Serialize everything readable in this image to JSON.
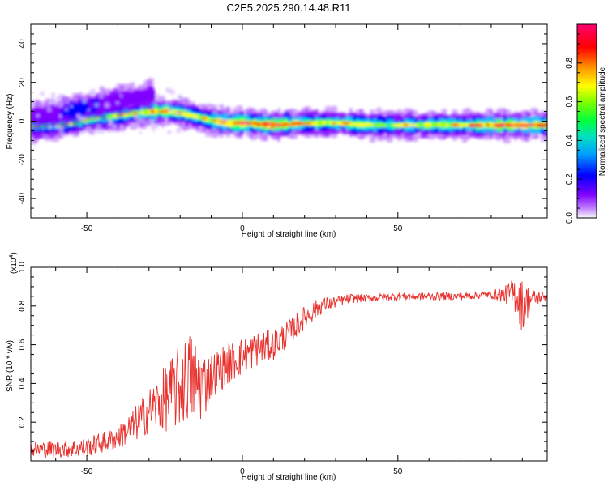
{
  "title": "C2E5.2025.290.14.48.R11",
  "chart_data": [
    {
      "type": "heatmap",
      "xlabel": "Height of straight line (km)",
      "ylabel": "Frequency (Hz)",
      "xlim": [
        -68,
        98
      ],
      "ylim": [
        -50,
        50
      ],
      "xticks": [
        -50,
        0,
        50
      ],
      "yticks": [
        -40,
        -20,
        0,
        20,
        40
      ],
      "colorbar": {
        "label": "Normalized spectral amplitude",
        "range": [
          0,
          1
        ],
        "ticks": [
          "0.0",
          "0.2",
          "0.4",
          "0.6",
          "0.8"
        ],
        "colors": [
          "#f8f8f8",
          "#8000ff",
          "#0000ff",
          "#00c8ff",
          "#00ff80",
          "#80ff00",
          "#ffff00",
          "#ff8000",
          "#ff0000",
          "#ff0080"
        ]
      },
      "ridges": [
        {
          "x": [
            -68,
            -60,
            -55,
            -50,
            -45,
            -40,
            -35,
            -30,
            -25,
            -20,
            -15,
            -10,
            -5,
            0,
            10,
            20,
            30,
            40,
            50,
            60,
            70,
            80,
            90,
            97
          ],
          "y": [
            -3,
            -2,
            -1,
            1,
            2,
            3,
            4,
            5,
            5,
            4,
            2,
            0,
            -1,
            -1,
            -2,
            -1,
            -1,
            -2,
            -2,
            -2,
            -2,
            -2,
            -2,
            -2
          ],
          "amplitude": [
            0.45,
            0.5,
            0.55,
            0.55,
            0.55,
            0.6,
            0.65,
            0.75,
            0.8,
            0.7,
            0.6,
            0.75,
            0.85,
            0.9,
            0.95,
            0.7,
            0.7,
            0.6,
            0.6,
            0.65,
            0.7,
            0.85,
            0.9,
            0.8
          ]
        },
        {
          "x": [
            -68,
            -60,
            -55,
            -50,
            -45,
            -40,
            -35,
            -30
          ],
          "y": [
            3,
            4,
            6,
            8,
            9,
            11,
            12,
            14
          ],
          "amplitude": [
            0.3,
            0.35,
            0.5,
            0.45,
            0.35,
            0.25,
            0.2,
            0.15
          ]
        }
      ]
    },
    {
      "type": "line",
      "xlabel": "Height of straight line (km)",
      "ylabel": "SNR (10 * v/v)",
      "ymultiplier": "(x10",
      "ymultiplier_exp": "4",
      "xlim": [
        -68,
        98
      ],
      "ylim": [
        0,
        1.0
      ],
      "xticks": [
        -50,
        0,
        50
      ],
      "yticks": [
        "0.2",
        "0.4",
        "0.6",
        "0.8",
        "1.0"
      ],
      "color": "#e8302c",
      "trend": {
        "x": [
          -68,
          -60,
          -50,
          -40,
          -35,
          -30,
          -25,
          -20,
          -17,
          -15,
          -12,
          -10,
          -5,
          0,
          5,
          10,
          15,
          20,
          25,
          30,
          35,
          40,
          50,
          60,
          70,
          80,
          85,
          88,
          90,
          93,
          98
        ],
        "y": [
          0.06,
          0.06,
          0.07,
          0.12,
          0.18,
          0.26,
          0.32,
          0.38,
          0.44,
          0.4,
          0.4,
          0.44,
          0.5,
          0.54,
          0.58,
          0.6,
          0.66,
          0.74,
          0.8,
          0.82,
          0.84,
          0.84,
          0.85,
          0.85,
          0.85,
          0.86,
          0.86,
          0.86,
          0.8,
          0.84,
          0.85
        ]
      },
      "noise": {
        "x": [
          -68,
          -50,
          -40,
          -30,
          -20,
          -15,
          -10,
          0,
          10,
          20,
          30,
          40,
          80,
          85,
          90,
          93,
          98
        ],
        "y": [
          0.04,
          0.05,
          0.06,
          0.12,
          0.22,
          0.24,
          0.12,
          0.1,
          0.08,
          0.06,
          0.03,
          0.02,
          0.02,
          0.05,
          0.14,
          0.05,
          0.02
        ]
      }
    }
  ]
}
